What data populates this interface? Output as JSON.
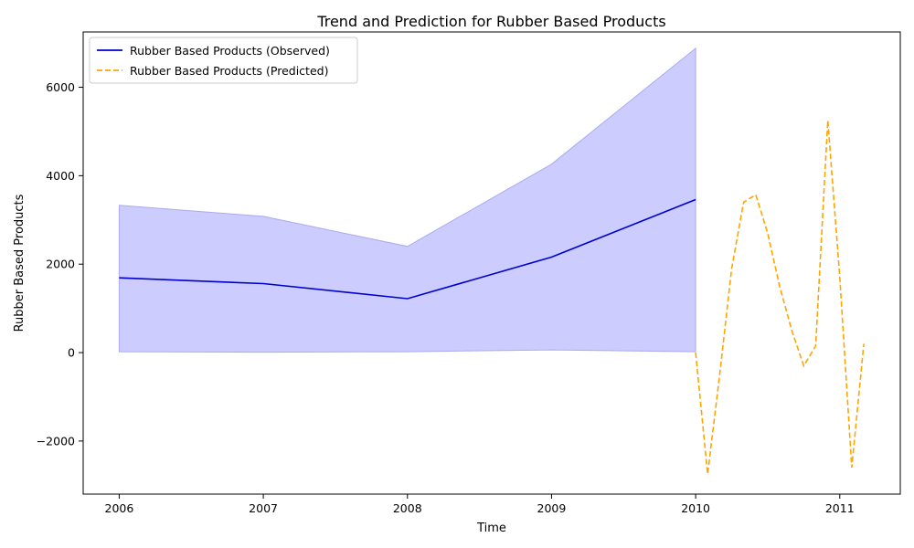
{
  "chart_data": {
    "type": "line",
    "title": "Trend and Prediction for Rubber Based Products",
    "xlabel": "Time",
    "ylabel": "Rubber Based Products",
    "xlim": [
      2005.75,
      2011.42
    ],
    "ylim": [
      -3200,
      7250
    ],
    "x_ticks": [
      2006,
      2007,
      2008,
      2009,
      2010,
      2011
    ],
    "y_ticks": [
      -2000,
      0,
      2000,
      4000,
      6000
    ],
    "grid": false,
    "legend_placement": "top-left",
    "colors": {
      "observed": "#0000cc",
      "predicted": "#ffa500",
      "band_fill": "#ccccff",
      "band_edge": "#aaaaee"
    },
    "series": [
      {
        "name": "Rubber Based Products (Observed)",
        "style": "solid",
        "x": [
          2006,
          2007,
          2008,
          2009,
          2010
        ],
        "y": [
          1690,
          1560,
          1220,
          2160,
          3460
        ]
      },
      {
        "name": "Rubber Based Products (Predicted)",
        "style": "dashed",
        "x": [
          2010.0,
          2010.083,
          2010.167,
          2010.25,
          2010.333,
          2010.417,
          2010.5,
          2010.583,
          2010.667,
          2010.75,
          2010.833,
          2010.917,
          2011.0,
          2011.083,
          2011.167
        ],
        "y": [
          0,
          -2750,
          -500,
          1900,
          3400,
          3570,
          2700,
          1500,
          500,
          -300,
          150,
          5250,
          1700,
          -2600,
          200
        ]
      }
    ],
    "band": {
      "x": [
        2006,
        2007,
        2008,
        2009,
        2010
      ],
      "lower": [
        20,
        10,
        20,
        60,
        20
      ],
      "upper": [
        3330,
        3080,
        2400,
        4260,
        6880
      ]
    }
  }
}
